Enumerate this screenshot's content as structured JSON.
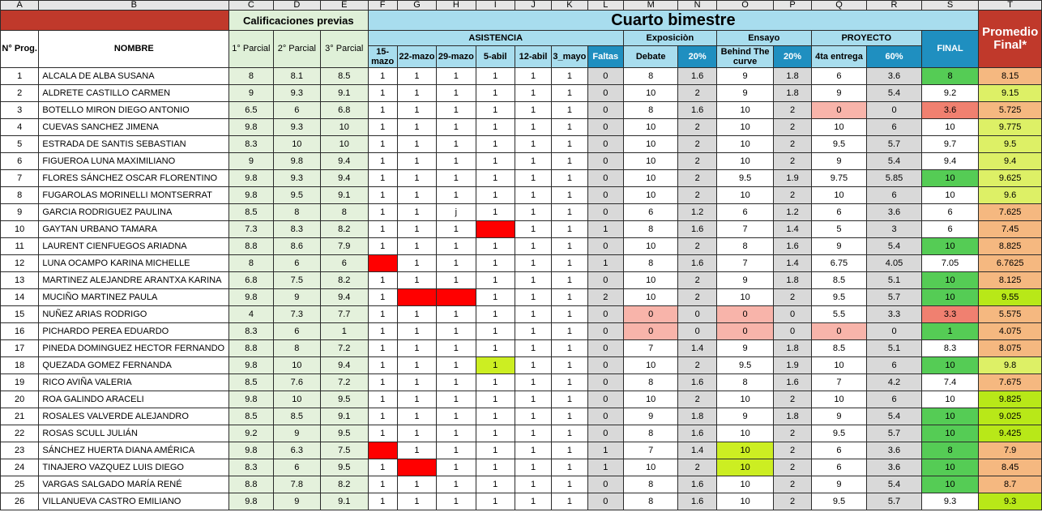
{
  "col_letters": [
    "A",
    "B",
    "C",
    "D",
    "E",
    "F",
    "G",
    "H",
    "I",
    "J",
    "K",
    "L",
    "M",
    "N",
    "O",
    "P",
    "Q",
    "R",
    "S",
    "T"
  ],
  "headers": {
    "prev_title": "Calificaciones previas",
    "main_title": "Cuarto bimestre",
    "promedio": "Promedio Final*",
    "num_prog": "N° Prog.",
    "nombre": "NOMBRE",
    "parcial1": "1° Parcial",
    "parcial2": "2° Parcial",
    "parcial3": "3° Parcial",
    "asistencia": "ASISTENCIA",
    "exposicion": "Exposiciòn",
    "ensayo": "Ensayo",
    "proyecto": "PROYECTO",
    "final": "FINAL",
    "d1": "15-mazo",
    "d2": "22-mazo",
    "d3": "29-mazo",
    "d4": "5-abil",
    "d5": "12-abil",
    "d6": "3_mayo",
    "faltas": "Faltas",
    "debate": "Debate",
    "p20a": "20%",
    "behind": "Behind The curve",
    "p20b": "20%",
    "entrega": "4ta entrega",
    "p60": "60%"
  },
  "colors": {
    "header_red": "#c0392b",
    "header_blue": "#a8ddee",
    "final_blue": "#1f8fc0",
    "absence_red": "#ff0000",
    "green": "#55cc55",
    "peach": "#f5b880",
    "lime": "#ccee22"
  },
  "rows": [
    {
      "n": "1",
      "name": "ALCALA DE ALBA SUSANA",
      "p1": "8",
      "p2": "8.1",
      "p3": "8.5",
      "a": [
        "1",
        "1",
        "1",
        "1",
        "1",
        "1"
      ],
      "faltas": "0",
      "deb": "8",
      "d20": "1.6",
      "ens": "9",
      "e20": "1.8",
      "ent": "6",
      "e60": "3.6",
      "fin": "8",
      "prom": "8.15",
      "fc": "green",
      "pc": "peach"
    },
    {
      "n": "2",
      "name": "ALDRETE CASTILLO CARMEN",
      "p1": "9",
      "p2": "9.3",
      "p3": "9.1",
      "a": [
        "1",
        "1",
        "1",
        "1",
        "1",
        "1"
      ],
      "faltas": "0",
      "deb": "10",
      "d20": "2",
      "ens": "9",
      "e20": "1.8",
      "ent": "9",
      "e60": "5.4",
      "fin": "9.2",
      "prom": "9.15",
      "fc": "white",
      "pc": "lime"
    },
    {
      "n": "3",
      "name": "BOTELLO MIRON DIEGO ANTONIO",
      "p1": "6.5",
      "p2": "6",
      "p3": "6.8",
      "a": [
        "1",
        "1",
        "1",
        "1",
        "1",
        "1"
      ],
      "faltas": "0",
      "deb": "8",
      "d20": "1.6",
      "ens": "10",
      "e20": "2",
      "ent": "0",
      "e60": "0",
      "fin": "3.6",
      "prom": "5.725",
      "fc": "salmon",
      "pc": "peach",
      "entc": "pink"
    },
    {
      "n": "4",
      "name": "CUEVAS SANCHEZ JIMENA",
      "p1": "9.8",
      "p2": "9.3",
      "p3": "10",
      "a": [
        "1",
        "1",
        "1",
        "1",
        "1",
        "1"
      ],
      "faltas": "0",
      "deb": "10",
      "d20": "2",
      "ens": "10",
      "e20": "2",
      "ent": "10",
      "e60": "6",
      "fin": "10",
      "prom": "9.775",
      "fc": "white",
      "pc": "lime"
    },
    {
      "n": "5",
      "name": "ESTRADA DE SANTIS SEBASTIAN",
      "p1": "8.3",
      "p2": "10",
      "p3": "10",
      "a": [
        "1",
        "1",
        "1",
        "1",
        "1",
        "1"
      ],
      "faltas": "0",
      "deb": "10",
      "d20": "2",
      "ens": "10",
      "e20": "2",
      "ent": "9.5",
      "e60": "5.7",
      "fin": "9.7",
      "prom": "9.5",
      "fc": "white",
      "pc": "lime"
    },
    {
      "n": "6",
      "name": "FIGUEROA LUNA MAXIMILIANO",
      "p1": "9",
      "p2": "9.8",
      "p3": "9.4",
      "a": [
        "1",
        "1",
        "1",
        "1",
        "1",
        "1"
      ],
      "faltas": "0",
      "deb": "10",
      "d20": "2",
      "ens": "10",
      "e20": "2",
      "ent": "9",
      "e60": "5.4",
      "fin": "9.4",
      "prom": "9.4",
      "fc": "white",
      "pc": "lime"
    },
    {
      "n": "7",
      "name": "FLORES SÁNCHEZ OSCAR FLORENTINO",
      "p1": "9.8",
      "p2": "9.3",
      "p3": "9.4",
      "a": [
        "1",
        "1",
        "1",
        "1",
        "1",
        "1"
      ],
      "faltas": "0",
      "deb": "10",
      "d20": "2",
      "ens": "9.5",
      "e20": "1.9",
      "ent": "9.75",
      "e60": "5.85",
      "fin": "10",
      "prom": "9.625",
      "fc": "green",
      "pc": "lime"
    },
    {
      "n": "8",
      "name": "FUGAROLAS MORINELLI MONTSERRAT",
      "p1": "9.8",
      "p2": "9.5",
      "p3": "9.1",
      "a": [
        "1",
        "1",
        "1",
        "1",
        "1",
        "1"
      ],
      "faltas": "0",
      "deb": "10",
      "d20": "2",
      "ens": "10",
      "e20": "2",
      "ent": "10",
      "e60": "6",
      "fin": "10",
      "prom": "9.6",
      "fc": "white",
      "pc": "lime"
    },
    {
      "n": "9",
      "name": "GARCIA RODRIGUEZ PAULINA",
      "p1": "8.5",
      "p2": "8",
      "p3": "8",
      "a": [
        "1",
        "1",
        "j",
        "1",
        "1",
        "1"
      ],
      "faltas": "0",
      "deb": "6",
      "d20": "1.2",
      "ens": "6",
      "e20": "1.2",
      "ent": "6",
      "e60": "3.6",
      "fin": "6",
      "prom": "7.625",
      "fc": "white",
      "pc": "peach"
    },
    {
      "n": "10",
      "name": "GAYTAN URBANO TAMARA",
      "p1": "7.3",
      "p2": "8.3",
      "p3": "8.2",
      "a": [
        "1",
        "1",
        "1",
        "0",
        "1",
        "1"
      ],
      "abs": [
        3
      ],
      "faltas": "1",
      "deb": "8",
      "d20": "1.6",
      "ens": "7",
      "e20": "1.4",
      "ent": "5",
      "e60": "3",
      "fin": "6",
      "prom": "7.45",
      "fc": "white",
      "pc": "peach"
    },
    {
      "n": "11",
      "name": "LAURENT CIENFUEGOS ARIADNA",
      "p1": "8.8",
      "p2": "8.6",
      "p3": "7.9",
      "a": [
        "1",
        "1",
        "1",
        "1",
        "1",
        "1"
      ],
      "faltas": "0",
      "deb": "10",
      "d20": "2",
      "ens": "8",
      "e20": "1.6",
      "ent": "9",
      "e60": "5.4",
      "fin": "10",
      "prom": "8.825",
      "fc": "green",
      "pc": "peach"
    },
    {
      "n": "12",
      "name": "LUNA OCAMPO KARINA MICHELLE",
      "p1": "8",
      "p2": "6",
      "p3": "6",
      "a": [
        "0",
        "1",
        "1",
        "1",
        "1",
        "1"
      ],
      "abs": [
        0
      ],
      "faltas": "1",
      "deb": "8",
      "d20": "1.6",
      "ens": "7",
      "e20": "1.4",
      "ent": "6.75",
      "e60": "4.05",
      "fin": "7.05",
      "prom": "6.7625",
      "fc": "white",
      "pc": "peach"
    },
    {
      "n": "13",
      "name": "MARTINEZ ALEJANDRE ARANTXA KARINA",
      "p1": "6.8",
      "p2": "7.5",
      "p3": "8.2",
      "a": [
        "1",
        "1",
        "1",
        "1",
        "1",
        "1"
      ],
      "faltas": "0",
      "deb": "10",
      "d20": "2",
      "ens": "9",
      "e20": "1.8",
      "ent": "8.5",
      "e60": "5.1",
      "fin": "10",
      "prom": "8.125",
      "fc": "green",
      "pc": "peach"
    },
    {
      "n": "14",
      "name": "MUCIÑO MARTINEZ PAULA",
      "p1": "9.8",
      "p2": "9",
      "p3": "9.4",
      "a": [
        "1",
        "0",
        "0",
        "1",
        "1",
        "1"
      ],
      "abs": [
        1,
        2
      ],
      "faltas": "2",
      "deb": "10",
      "d20": "2",
      "ens": "10",
      "e20": "2",
      "ent": "9.5",
      "e60": "5.7",
      "fin": "10",
      "prom": "9.55",
      "fc": "green",
      "pc": "chartreuse"
    },
    {
      "n": "15",
      "name": "NUÑEZ ARIAS RODRIGO",
      "p1": "4",
      "p2": "7.3",
      "p3": "7.7",
      "a": [
        "1",
        "1",
        "1",
        "1",
        "1",
        "1"
      ],
      "faltas": "0",
      "deb": "0",
      "d20": "0",
      "ens": "0",
      "e20": "0",
      "ent": "5.5",
      "e60": "3.3",
      "fin": "3.3",
      "prom": "5.575",
      "fc": "salmon",
      "pc": "peach",
      "debc": "pink",
      "ensc": "pink"
    },
    {
      "n": "16",
      "name": "PICHARDO PEREA EDUARDO",
      "p1": "8.3",
      "p2": "6",
      "p3": "1",
      "a": [
        "1",
        "1",
        "1",
        "1",
        "1",
        "1"
      ],
      "faltas": "0",
      "deb": "0",
      "d20": "0",
      "ens": "0",
      "e20": "0",
      "ent": "0",
      "e60": "0",
      "fin": "1",
      "prom": "4.075",
      "fc": "green",
      "pc": "peach",
      "debc": "pink",
      "ensc": "pink",
      "entc": "pink"
    },
    {
      "n": "17",
      "name": "PINEDA DOMINGUEZ HECTOR FERNANDO",
      "p1": "8.8",
      "p2": "8",
      "p3": "7.2",
      "a": [
        "1",
        "1",
        "1",
        "1",
        "1",
        "1"
      ],
      "faltas": "0",
      "deb": "7",
      "d20": "1.4",
      "ens": "9",
      "e20": "1.8",
      "ent": "8.5",
      "e60": "5.1",
      "fin": "8.3",
      "prom": "8.075",
      "fc": "white",
      "pc": "peach"
    },
    {
      "n": "18",
      "name": "QUEZADA GOMEZ FERNANDA",
      "p1": "9.8",
      "p2": "10",
      "p3": "9.4",
      "a": [
        "1",
        "1",
        "1",
        "1",
        "1",
        "1"
      ],
      "lime": [
        3
      ],
      "faltas": "0",
      "deb": "10",
      "d20": "2",
      "ens": "9.5",
      "e20": "1.9",
      "ent": "10",
      "e60": "6",
      "fin": "10",
      "prom": "9.8",
      "fc": "green",
      "pc": "lime"
    },
    {
      "n": "19",
      "name": "RICO AVIÑA VALERIA",
      "p1": "8.5",
      "p2": "7.6",
      "p3": "7.2",
      "a": [
        "1",
        "1",
        "1",
        "1",
        "1",
        "1"
      ],
      "faltas": "0",
      "deb": "8",
      "d20": "1.6",
      "ens": "8",
      "e20": "1.6",
      "ent": "7",
      "e60": "4.2",
      "fin": "7.4",
      "prom": "7.675",
      "fc": "white",
      "pc": "peach"
    },
    {
      "n": "20",
      "name": "ROA GALINDO ARACELI",
      "p1": "9.8",
      "p2": "10",
      "p3": "9.5",
      "a": [
        "1",
        "1",
        "1",
        "1",
        "1",
        "1"
      ],
      "faltas": "0",
      "deb": "10",
      "d20": "2",
      "ens": "10",
      "e20": "2",
      "ent": "10",
      "e60": "6",
      "fin": "10",
      "prom": "9.825",
      "fc": "white",
      "pc": "chartreuse"
    },
    {
      "n": "21",
      "name": "ROSALES VALVERDE ALEJANDRO",
      "p1": "8.5",
      "p2": "8.5",
      "p3": "9.1",
      "a": [
        "1",
        "1",
        "1",
        "1",
        "1",
        "1"
      ],
      "faltas": "0",
      "deb": "9",
      "d20": "1.8",
      "ens": "9",
      "e20": "1.8",
      "ent": "9",
      "e60": "5.4",
      "fin": "10",
      "prom": "9.025",
      "fc": "green",
      "pc": "chartreuse"
    },
    {
      "n": "22",
      "name": "ROSAS SCULL JULIÁN",
      "p1": "9.2",
      "p2": "9",
      "p3": "9.5",
      "a": [
        "1",
        "1",
        "1",
        "1",
        "1",
        "1"
      ],
      "faltas": "0",
      "deb": "8",
      "d20": "1.6",
      "ens": "10",
      "e20": "2",
      "ent": "9.5",
      "e60": "5.7",
      "fin": "10",
      "prom": "9.425",
      "fc": "green",
      "pc": "chartreuse"
    },
    {
      "n": "23",
      "name": "SÁNCHEZ HUERTA DIANA AMÉRICA",
      "p1": "9.8",
      "p2": "6.3",
      "p3": "7.5",
      "a": [
        "0",
        "1",
        "1",
        "1",
        "1",
        "1"
      ],
      "abs": [
        0
      ],
      "faltas": "1",
      "deb": "7",
      "d20": "1.4",
      "ens": "10",
      "e20": "2",
      "ent": "6",
      "e60": "3.6",
      "fin": "8",
      "prom": "7.9",
      "fc": "green",
      "pc": "peach",
      "ensc": "yg"
    },
    {
      "n": "24",
      "name": "TINAJERO VAZQUEZ LUIS DIEGO",
      "p1": "8.3",
      "p2": "6",
      "p3": "9.5",
      "a": [
        "1",
        "0",
        "1",
        "1",
        "1",
        "1"
      ],
      "abs": [
        1
      ],
      "faltas": "1",
      "deb": "10",
      "d20": "2",
      "ens": "10",
      "e20": "2",
      "ent": "6",
      "e60": "3.6",
      "fin": "10",
      "prom": "8.45",
      "fc": "green",
      "pc": "peach",
      "ensc": "yg"
    },
    {
      "n": "25",
      "name": "VARGAS SALGADO MARÍA RENÉ",
      "p1": "8.8",
      "p2": "7.8",
      "p3": "8.2",
      "a": [
        "1",
        "1",
        "1",
        "1",
        "1",
        "1"
      ],
      "faltas": "0",
      "deb": "8",
      "d20": "1.6",
      "ens": "10",
      "e20": "2",
      "ent": "9",
      "e60": "5.4",
      "fin": "10",
      "prom": "8.7",
      "fc": "green",
      "pc": "peach"
    },
    {
      "n": "26",
      "name": "VILLANUEVA CASTRO EMILIANO",
      "p1": "9.8",
      "p2": "9",
      "p3": "9.1",
      "a": [
        "1",
        "1",
        "1",
        "1",
        "1",
        "1"
      ],
      "faltas": "0",
      "deb": "8",
      "d20": "1.6",
      "ens": "10",
      "e20": "2",
      "ent": "9.5",
      "e60": "5.7",
      "fin": "9.3",
      "prom": "9.3",
      "fc": "white",
      "pc": "chartreuse"
    }
  ]
}
